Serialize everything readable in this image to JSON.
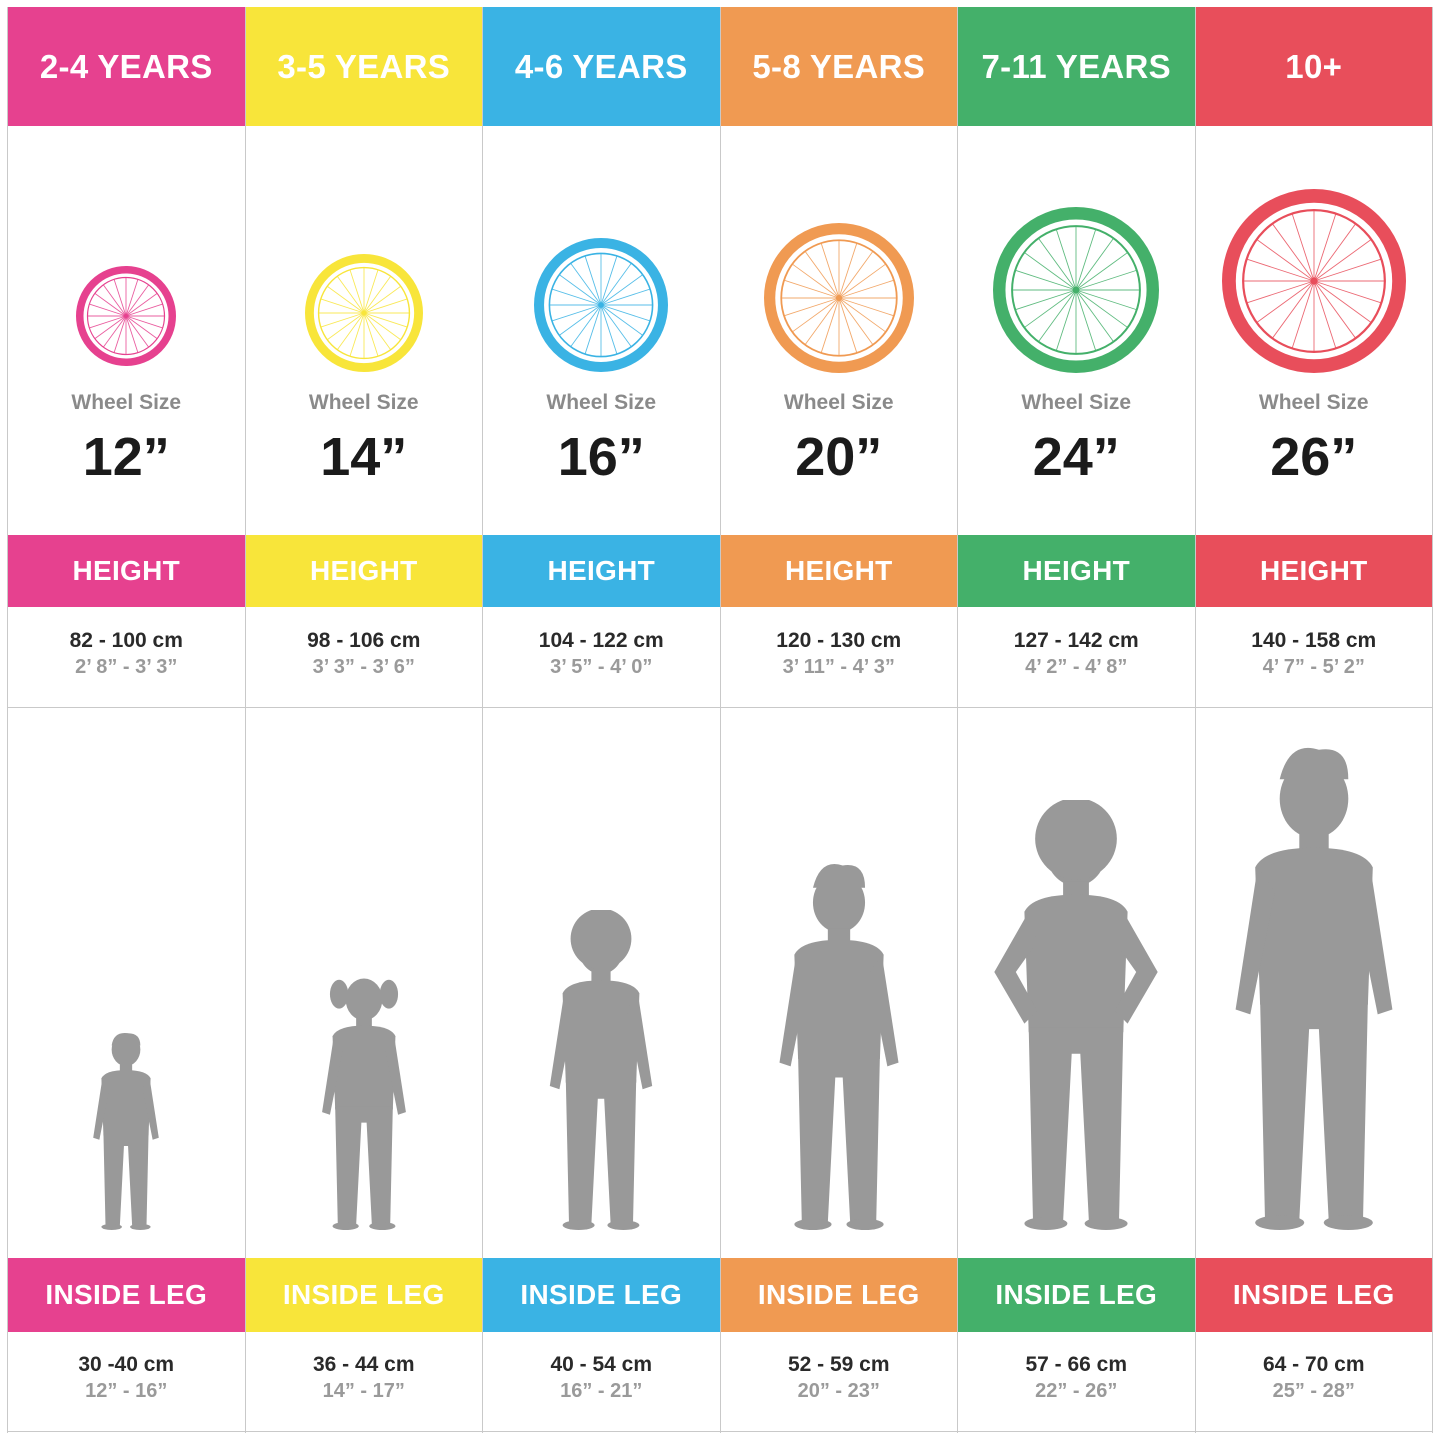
{
  "wheel_label": "Wheel Size",
  "height_label": "HEIGHT",
  "leg_label": "INSIDE LEG",
  "figure_color": "#999999",
  "columns": [
    {
      "age": "2-4 YEARS",
      "color": "#e6418f",
      "wheel_size": "12”",
      "height_cm": "82 - 100 cm",
      "height_imp": "2’ 8” - 3’ 3”",
      "leg_cm": "30 -40 cm",
      "leg_imp": "12” - 16”",
      "figure_icon": "toddler-silhouette-icon"
    },
    {
      "age": "3-5 YEARS",
      "color": "#f8e53a",
      "wheel_size": "14”",
      "height_cm": "98 - 106 cm",
      "height_imp": "3’ 3” - 3’ 6”",
      "leg_cm": "36 - 44 cm",
      "leg_imp": "14” - 17”",
      "figure_icon": "girl-pigtails-silhouette-icon"
    },
    {
      "age": "4-6 YEARS",
      "color": "#3ab3e4",
      "wheel_size": "16”",
      "height_cm": "104 - 122 cm",
      "height_imp": "3’ 5” - 4’ 0”",
      "leg_cm": "40 - 54 cm",
      "leg_imp": "16” - 21”",
      "figure_icon": "child-curly-hair-silhouette-icon"
    },
    {
      "age": "5-8 YEARS",
      "color": "#f09a52",
      "wheel_size": "20”",
      "height_cm": "120 - 130 cm",
      "height_imp": "3’ 11” - 4’ 3”",
      "leg_cm": "52 - 59 cm",
      "leg_imp": "20” - 23”",
      "figure_icon": "boy-silhouette-icon"
    },
    {
      "age": "7-11 YEARS",
      "color": "#44b06a",
      "wheel_size": "24”",
      "height_cm": "127 - 142 cm",
      "height_imp": "4’ 2” - 4’ 8”",
      "leg_cm": "57 - 66 cm",
      "leg_imp": "22” - 26”",
      "figure_icon": "girl-hands-on-hips-silhouette-icon"
    },
    {
      "age": "10+",
      "color": "#e84e5b",
      "wheel_size": "26”",
      "height_cm": "140 - 158 cm",
      "height_imp": "4’ 7” - 5’ 2”",
      "leg_cm": "64 - 70 cm",
      "leg_imp": "25” - 28”",
      "figure_icon": "adult-silhouette-icon"
    }
  ]
}
